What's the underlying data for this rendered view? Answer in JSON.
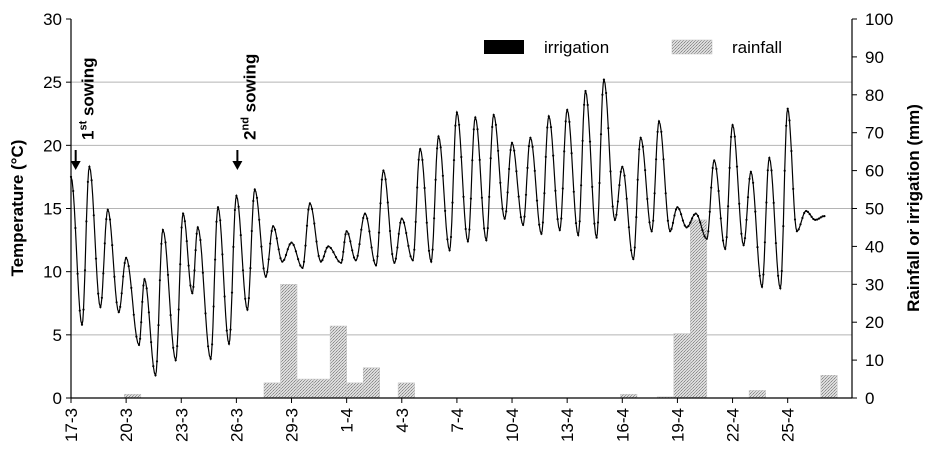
{
  "chart_data": {
    "type": "line",
    "title": "",
    "ylabel_left": "Temperature (°C)",
    "ylabel_right": "Rainfall or irrigation (mm)",
    "xlabel": "",
    "ylim_left": [
      0,
      30
    ],
    "ylim_right": [
      0,
      100
    ],
    "yticks_left": [
      0,
      5,
      10,
      15,
      20,
      25,
      30
    ],
    "yticks_right": [
      0,
      10,
      20,
      30,
      40,
      50,
      60,
      70,
      80,
      90,
      100
    ],
    "xlim_days": [
      17,
      59.5
    ],
    "grid": "horizontal",
    "legend_position": "top-right",
    "x_ticks": [
      {
        "label": "17-3",
        "day": 17
      },
      {
        "label": "20-3",
        "day": 20
      },
      {
        "label": "23-3",
        "day": 23
      },
      {
        "label": "26-3",
        "day": 26
      },
      {
        "label": "29-3",
        "day": 29
      },
      {
        "label": "1-4",
        "day": 32
      },
      {
        "label": "4-3",
        "day": 35
      },
      {
        "label": "7-4",
        "day": 38
      },
      {
        "label": "10-4",
        "day": 41
      },
      {
        "label": "13-4",
        "day": 44
      },
      {
        "label": "16-4",
        "day": 47
      },
      {
        "label": "19-4",
        "day": 50
      },
      {
        "label": "22-4",
        "day": 53
      },
      {
        "label": "25-4",
        "day": 56
      }
    ],
    "legend": [
      {
        "name": "irrigation",
        "color": "#000000"
      },
      {
        "name": "rainfall",
        "color": "#c9c9c9"
      }
    ],
    "annotations": [
      {
        "text": "1",
        "sup": "st",
        "suffix": " sowing",
        "day": 17.2
      },
      {
        "text": "2",
        "sup": "nd",
        "suffix": " sowing",
        "day": 26.0
      }
    ],
    "temperature": {
      "name": "Temperature",
      "extrema": [
        [
          17.0,
          17.5
        ],
        [
          17.6,
          5.8
        ],
        [
          18.0,
          18.3
        ],
        [
          18.6,
          7.2
        ],
        [
          19.0,
          14.9
        ],
        [
          19.6,
          6.8
        ],
        [
          20.0,
          11.1
        ],
        [
          20.7,
          4.2
        ],
        [
          21.0,
          9.4
        ],
        [
          21.6,
          1.8
        ],
        [
          22.0,
          13.3
        ],
        [
          22.7,
          3.0
        ],
        [
          23.1,
          14.6
        ],
        [
          23.6,
          8.3
        ],
        [
          23.9,
          13.5
        ],
        [
          24.6,
          3.1
        ],
        [
          25.0,
          15.1
        ],
        [
          25.6,
          4.3
        ],
        [
          26.0,
          16.0
        ],
        [
          26.6,
          7.0
        ],
        [
          27.0,
          16.5
        ],
        [
          27.6,
          9.6
        ],
        [
          28.0,
          13.6
        ],
        [
          28.5,
          10.8
        ],
        [
          29.0,
          12.3
        ],
        [
          29.6,
          10.3
        ],
        [
          30.0,
          15.4
        ],
        [
          30.6,
          10.8
        ],
        [
          31.0,
          12.0
        ],
        [
          31.7,
          10.7
        ],
        [
          32.0,
          13.2
        ],
        [
          32.5,
          10.9
        ],
        [
          33.0,
          14.6
        ],
        [
          33.6,
          10.5
        ],
        [
          34.0,
          18.0
        ],
        [
          34.6,
          10.7
        ],
        [
          35.0,
          14.2
        ],
        [
          35.6,
          10.9
        ],
        [
          36.0,
          19.7
        ],
        [
          36.6,
          10.8
        ],
        [
          37.0,
          20.7
        ],
        [
          37.6,
          11.7
        ],
        [
          38.0,
          22.6
        ],
        [
          38.6,
          12.4
        ],
        [
          39.0,
          22.2
        ],
        [
          39.6,
          12.5
        ],
        [
          40.0,
          22.4
        ],
        [
          40.6,
          14.2
        ],
        [
          41.0,
          20.2
        ],
        [
          41.6,
          13.7
        ],
        [
          42.0,
          20.6
        ],
        [
          42.6,
          13.0
        ],
        [
          43.0,
          22.3
        ],
        [
          43.6,
          13.3
        ],
        [
          44.0,
          22.8
        ],
        [
          44.6,
          12.9
        ],
        [
          45.0,
          24.3
        ],
        [
          45.6,
          12.7
        ],
        [
          46.0,
          25.2
        ],
        [
          46.6,
          14.1
        ],
        [
          47.0,
          18.3
        ],
        [
          47.6,
          11.0
        ],
        [
          48.0,
          20.6
        ],
        [
          48.6,
          13.2
        ],
        [
          49.0,
          21.9
        ],
        [
          49.6,
          13.2
        ],
        [
          50.0,
          15.1
        ],
        [
          50.5,
          13.5
        ],
        [
          51.0,
          14.6
        ],
        [
          51.6,
          12.6
        ],
        [
          52.0,
          18.8
        ],
        [
          52.6,
          11.8
        ],
        [
          53.0,
          21.6
        ],
        [
          53.6,
          12.1
        ],
        [
          54.0,
          17.9
        ],
        [
          54.6,
          8.8
        ],
        [
          55.0,
          19.0
        ],
        [
          55.6,
          8.7
        ],
        [
          56.0,
          22.9
        ],
        [
          56.5,
          13.2
        ],
        [
          57.0,
          14.8
        ],
        [
          57.5,
          14.1
        ],
        [
          58.0,
          14.4
        ]
      ]
    },
    "rainfall": {
      "name": "rainfall",
      "bars": [
        {
          "start": 19.9,
          "end": 20.8,
          "value": 1
        },
        {
          "start": 27.5,
          "end": 28.4,
          "value": 4
        },
        {
          "start": 28.4,
          "end": 29.3,
          "value": 30
        },
        {
          "start": 29.3,
          "end": 30.2,
          "value": 5
        },
        {
          "start": 30.2,
          "end": 31.1,
          "value": 5
        },
        {
          "start": 31.1,
          "end": 32.0,
          "value": 19
        },
        {
          "start": 32.0,
          "end": 32.9,
          "value": 4
        },
        {
          "start": 32.9,
          "end": 33.8,
          "value": 8
        },
        {
          "start": 34.8,
          "end": 35.7,
          "value": 4
        },
        {
          "start": 46.9,
          "end": 47.8,
          "value": 1
        },
        {
          "start": 48.9,
          "end": 49.8,
          "value": 0.3
        },
        {
          "start": 49.8,
          "end": 50.7,
          "value": 17
        },
        {
          "start": 50.7,
          "end": 51.6,
          "value": 47
        },
        {
          "start": 53.9,
          "end": 54.8,
          "value": 2
        },
        {
          "start": 57.8,
          "end": 58.7,
          "value": 6
        }
      ]
    },
    "irrigation": {
      "name": "irrigation",
      "bars": []
    }
  }
}
